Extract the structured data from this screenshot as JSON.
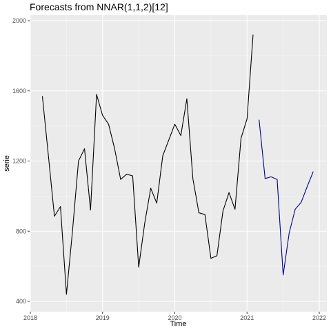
{
  "chart_data": {
    "type": "line",
    "title": "Forecasts from NNAR(1,1,2)[12]",
    "xlabel": "Time",
    "ylabel": "serie",
    "xlim": [
      2018,
      2022
    ],
    "ylim": [
      400,
      2000
    ],
    "x_ticks": [
      2018,
      2019,
      2020,
      2021,
      2022
    ],
    "x_tick_labels": [
      "2018",
      "2019",
      "2020",
      "2021",
      "2022"
    ],
    "y_ticks": [
      400,
      800,
      1200,
      1600,
      2000
    ],
    "y_tick_labels": [
      "400",
      "800",
      "1200",
      "1600",
      "2000"
    ],
    "grid": true,
    "background": "#ebebeb",
    "series": [
      {
        "role": "observed",
        "color": "#000000",
        "x": [
          "2018-03",
          "2018-04",
          "2018-05",
          "2018-06",
          "2018-07",
          "2018-08",
          "2018-09",
          "2018-10",
          "2018-11",
          "2018-12",
          "2019-01",
          "2019-02",
          "2019-03",
          "2019-04",
          "2019-05",
          "2019-06",
          "2019-07",
          "2019-08",
          "2019-09",
          "2019-10",
          "2019-11",
          "2019-12",
          "2020-01",
          "2020-02",
          "2020-03",
          "2020-04",
          "2020-05",
          "2020-06",
          "2020-07",
          "2020-08",
          "2020-09",
          "2020-10",
          "2020-11",
          "2020-12",
          "2021-01",
          "2021-02"
        ],
        "values": [
          1570,
          1230,
          885,
          940,
          440,
          800,
          1200,
          1270,
          920,
          1580,
          1460,
          1410,
          1270,
          1095,
          1125,
          1115,
          595,
          845,
          1045,
          960,
          1230,
          1320,
          1410,
          1345,
          1555,
          1100,
          905,
          895,
          645,
          660,
          915,
          1020,
          925,
          1330,
          1440,
          1920
        ]
      },
      {
        "role": "forecast",
        "color": "#00008b",
        "x": [
          "2021-03",
          "2021-04",
          "2021-05",
          "2021-06",
          "2021-07",
          "2021-08",
          "2021-09",
          "2021-10",
          "2021-11",
          "2021-12"
        ],
        "values": [
          1435,
          1100,
          1110,
          1095,
          550,
          790,
          925,
          965,
          1055,
          1140
        ]
      }
    ]
  }
}
